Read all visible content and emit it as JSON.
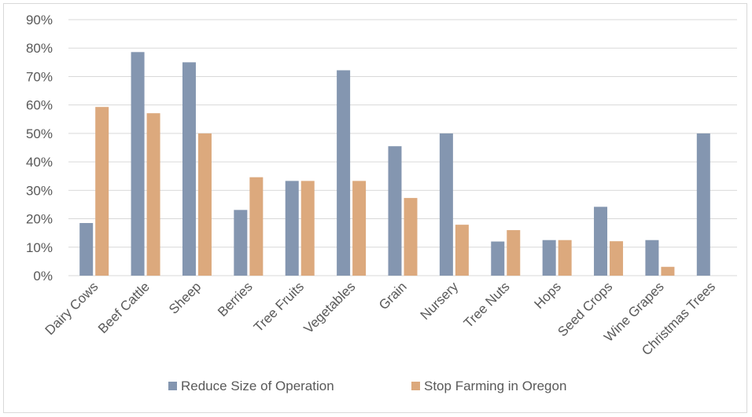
{
  "chart_data": {
    "type": "bar",
    "title": "",
    "xlabel": "",
    "ylabel": "",
    "ylim": [
      0,
      90
    ],
    "yticks": [
      "0%",
      "10%",
      "20%",
      "30%",
      "40%",
      "50%",
      "60%",
      "70%",
      "80%",
      "90%"
    ],
    "grid": true,
    "legend_position": "bottom",
    "categories": [
      "Dairy Cows",
      "Beef Cattle",
      "Sheep",
      "Berries",
      "Tree Fruits",
      "Vegetables",
      "Grain",
      "Nursery",
      "Tree Nuts",
      "Hops",
      "Seed Crops",
      "Wine Grapes",
      "Christmas Trees"
    ],
    "series": [
      {
        "name": "Reduce Size of Operation",
        "color": "#8496b0",
        "values": [
          18.5,
          78.6,
          75.0,
          23.1,
          33.3,
          72.2,
          45.5,
          50.0,
          12.0,
          12.5,
          24.2,
          12.5,
          50.0
        ]
      },
      {
        "name": "Stop Farming in Oregon",
        "color": "#dca97d",
        "values": [
          59.3,
          57.1,
          50.0,
          34.6,
          33.3,
          33.3,
          27.3,
          17.9,
          16.0,
          12.5,
          12.1,
          3.1,
          0
        ]
      }
    ]
  }
}
